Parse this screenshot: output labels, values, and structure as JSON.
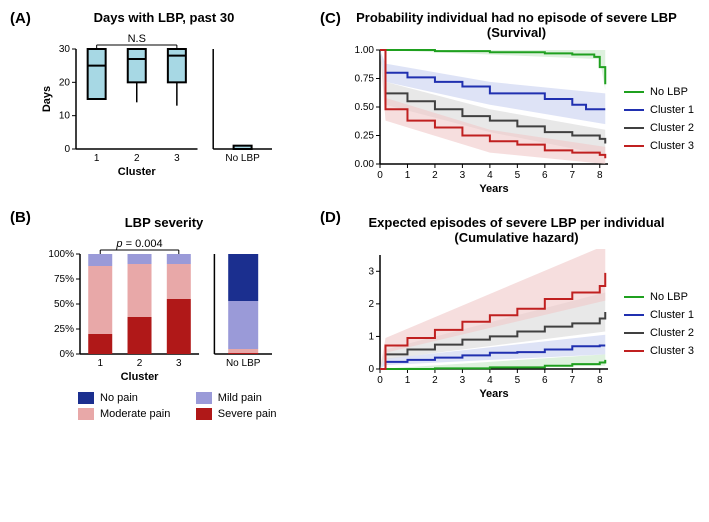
{
  "panels": {
    "A": {
      "label": "(A)",
      "title": "Days with LBP, past 30",
      "annotation": "N.S",
      "ylabel": "Days",
      "xlabel": "Cluster",
      "ylim": [
        0,
        30
      ],
      "yticks": [
        0,
        10,
        20,
        30
      ],
      "categories": [
        "1",
        "2",
        "3",
        "No LBP"
      ],
      "boxes": [
        {
          "q1": 15,
          "med": 25,
          "q3": 30,
          "wmin": 15,
          "wmax": 30
        },
        {
          "q1": 20,
          "med": 27,
          "q3": 30,
          "wmin": 14,
          "wmax": 30
        },
        {
          "q1": 20,
          "med": 28,
          "q3": 30,
          "wmin": 13,
          "wmax": 30
        },
        {
          "q1": 0,
          "med": 0,
          "q3": 1,
          "wmin": 0,
          "wmax": 1
        }
      ],
      "box_fill": "#a7d8e4",
      "box_stroke": "#000000",
      "box_stroke_width": 2
    },
    "B": {
      "label": "(B)",
      "title": "LBP severity",
      "annotation": "p = 0.004",
      "xlabel": "Cluster",
      "yticks": [
        "0%",
        "25%",
        "50%",
        "75%",
        "100%"
      ],
      "categories": [
        "1",
        "2",
        "3",
        "No LBP"
      ],
      "stacks": [
        {
          "no": 0,
          "mild": 12,
          "moderate": 68,
          "severe": 20
        },
        {
          "no": 0,
          "mild": 10,
          "moderate": 53,
          "severe": 37
        },
        {
          "no": 0,
          "mild": 10,
          "moderate": 35,
          "severe": 55
        },
        {
          "no": 47,
          "mild": 48,
          "moderate": 4,
          "severe": 1
        }
      ],
      "colors": {
        "no": "#1b2f8f",
        "mild": "#9a9ad8",
        "moderate": "#e8a8a8",
        "severe": "#b01818"
      },
      "legend": [
        {
          "key": "no",
          "label": "No pain"
        },
        {
          "key": "mild",
          "label": "Mild pain"
        },
        {
          "key": "moderate",
          "label": "Moderate pain"
        },
        {
          "key": "severe",
          "label": "Severe pain"
        }
      ]
    },
    "C": {
      "label": "(C)",
      "title": "Probability individual had no episode of severe LBP (Survival)",
      "xlabel": "Years",
      "ylim": [
        0,
        1
      ],
      "yticks": [
        0,
        0.25,
        0.5,
        0.75,
        1.0
      ],
      "xticks": [
        0,
        1,
        2,
        3,
        4,
        5,
        6,
        7,
        8
      ],
      "series": [
        {
          "name": "No LBP",
          "color": "#1fa01f",
          "ribbon": "#c8e8c8",
          "pts": [
            [
              0,
              1
            ],
            [
              0.5,
              1
            ],
            [
              1,
              1
            ],
            [
              2,
              0.99
            ],
            [
              3,
              0.99
            ],
            [
              4,
              0.98
            ],
            [
              5,
              0.98
            ],
            [
              6,
              0.97
            ],
            [
              7,
              0.96
            ],
            [
              7.8,
              0.94
            ],
            [
              8,
              0.85
            ],
            [
              8.2,
              0.7
            ]
          ],
          "lo": [
            [
              0,
              1
            ],
            [
              8,
              0.92
            ],
            [
              8.2,
              0.65
            ]
          ],
          "hi": [
            [
              0,
              1
            ],
            [
              8.2,
              1
            ]
          ]
        },
        {
          "name": "Cluster 1",
          "color": "#2030b0",
          "ribbon": "#c8d0f0",
          "pts": [
            [
              0,
              1
            ],
            [
              0.2,
              0.8
            ],
            [
              1,
              0.76
            ],
            [
              2,
              0.72
            ],
            [
              3,
              0.68
            ],
            [
              4,
              0.62
            ],
            [
              5,
              0.62
            ],
            [
              6,
              0.57
            ],
            [
              7,
              0.52
            ],
            [
              7.5,
              0.48
            ],
            [
              8,
              0.48
            ],
            [
              8.2,
              0.48
            ]
          ],
          "lo": [
            [
              0,
              1
            ],
            [
              0.2,
              0.72
            ],
            [
              4,
              0.52
            ],
            [
              8.2,
              0.35
            ]
          ],
          "hi": [
            [
              0,
              1
            ],
            [
              0.2,
              0.88
            ],
            [
              4,
              0.72
            ],
            [
              8.2,
              0.62
            ]
          ]
        },
        {
          "name": "Cluster 2",
          "color": "#404040",
          "ribbon": "#d8d8d8",
          "pts": [
            [
              0,
              1
            ],
            [
              0.2,
              0.62
            ],
            [
              1,
              0.55
            ],
            [
              2,
              0.48
            ],
            [
              3,
              0.42
            ],
            [
              4,
              0.38
            ],
            [
              5,
              0.33
            ],
            [
              6,
              0.28
            ],
            [
              7,
              0.25
            ],
            [
              8,
              0.22
            ],
            [
              8.2,
              0.18
            ]
          ],
          "lo": [
            [
              0,
              1
            ],
            [
              0.2,
              0.52
            ],
            [
              4,
              0.28
            ],
            [
              8.2,
              0.08
            ]
          ],
          "hi": [
            [
              0,
              1
            ],
            [
              0.2,
              0.72
            ],
            [
              4,
              0.48
            ],
            [
              8.2,
              0.3
            ]
          ]
        },
        {
          "name": "Cluster 3",
          "color": "#c02020",
          "ribbon": "#f0c8c8",
          "pts": [
            [
              0,
              1
            ],
            [
              0.2,
              0.48
            ],
            [
              1,
              0.38
            ],
            [
              2,
              0.32
            ],
            [
              3,
              0.25
            ],
            [
              4,
              0.2
            ],
            [
              5,
              0.17
            ],
            [
              6,
              0.12
            ],
            [
              7,
              0.1
            ],
            [
              8,
              0.08
            ],
            [
              8.2,
              0.05
            ]
          ],
          "lo": [
            [
              0,
              1
            ],
            [
              0.2,
              0.38
            ],
            [
              4,
              0.1
            ],
            [
              8.2,
              0.0
            ]
          ],
          "hi": [
            [
              0,
              1
            ],
            [
              0.2,
              0.58
            ],
            [
              4,
              0.3
            ],
            [
              8.2,
              0.15
            ]
          ]
        }
      ]
    },
    "D": {
      "label": "(D)",
      "title": "Expected episodes of severe LBP per individual (Cumulative hazard)",
      "xlabel": "Years",
      "ylim": [
        0,
        3.5
      ],
      "yticks": [
        0,
        1,
        2,
        3
      ],
      "xticks": [
        0,
        1,
        2,
        3,
        4,
        5,
        6,
        7,
        8
      ],
      "series": [
        {
          "name": "No LBP",
          "color": "#1fa01f",
          "ribbon": "#c8e8c8",
          "pts": [
            [
              0,
              0
            ],
            [
              2,
              0.02
            ],
            [
              4,
              0.05
            ],
            [
              6,
              0.1
            ],
            [
              7,
              0.15
            ],
            [
              8,
              0.2
            ],
            [
              8.2,
              0.28
            ]
          ],
          "lo": [
            [
              0,
              0
            ],
            [
              8.2,
              0.1
            ]
          ],
          "hi": [
            [
              0,
              0
            ],
            [
              8.2,
              0.45
            ]
          ]
        },
        {
          "name": "Cluster 1",
          "color": "#2030b0",
          "ribbon": "#c8d0f0",
          "pts": [
            [
              0,
              0
            ],
            [
              0.2,
              0.22
            ],
            [
              1,
              0.28
            ],
            [
              2,
              0.35
            ],
            [
              3,
              0.42
            ],
            [
              4,
              0.5
            ],
            [
              5,
              0.52
            ],
            [
              6,
              0.6
            ],
            [
              7,
              0.7
            ],
            [
              8,
              0.72
            ],
            [
              8.2,
              0.72
            ]
          ],
          "lo": [
            [
              0,
              0
            ],
            [
              0.2,
              0.12
            ],
            [
              8.2,
              0.45
            ]
          ],
          "hi": [
            [
              0,
              0
            ],
            [
              0.2,
              0.32
            ],
            [
              8.2,
              1.05
            ]
          ]
        },
        {
          "name": "Cluster 2",
          "color": "#404040",
          "ribbon": "#d8d8d8",
          "pts": [
            [
              0,
              0
            ],
            [
              0.2,
              0.45
            ],
            [
              1,
              0.6
            ],
            [
              2,
              0.75
            ],
            [
              3,
              0.9
            ],
            [
              4,
              1.0
            ],
            [
              5,
              1.15
            ],
            [
              6,
              1.3
            ],
            [
              7,
              1.4
            ],
            [
              8,
              1.55
            ],
            [
              8.2,
              1.75
            ]
          ],
          "lo": [
            [
              0,
              0
            ],
            [
              0.2,
              0.3
            ],
            [
              8.2,
              1.15
            ]
          ],
          "hi": [
            [
              0,
              0
            ],
            [
              0.2,
              0.6
            ],
            [
              8.2,
              2.35
            ]
          ]
        },
        {
          "name": "Cluster 3",
          "color": "#c02020",
          "ribbon": "#f0c8c8",
          "pts": [
            [
              0,
              0
            ],
            [
              0.2,
              0.72
            ],
            [
              1,
              0.95
            ],
            [
              2,
              1.2
            ],
            [
              3,
              1.45
            ],
            [
              4,
              1.65
            ],
            [
              5,
              1.85
            ],
            [
              6,
              2.15
            ],
            [
              7,
              2.35
            ],
            [
              8,
              2.55
            ],
            [
              8.2,
              2.95
            ]
          ],
          "lo": [
            [
              0,
              0
            ],
            [
              0.2,
              0.5
            ],
            [
              8.2,
              2.1
            ]
          ],
          "hi": [
            [
              0,
              0
            ],
            [
              0.2,
              0.95
            ],
            [
              8.2,
              3.8
            ]
          ]
        }
      ]
    }
  },
  "legend_lines": [
    {
      "label": "No LBP",
      "color": "#1fa01f"
    },
    {
      "label": "Cluster 1",
      "color": "#2030b0"
    },
    {
      "label": "Cluster 2",
      "color": "#404040"
    },
    {
      "label": "Cluster 3",
      "color": "#c02020"
    }
  ]
}
